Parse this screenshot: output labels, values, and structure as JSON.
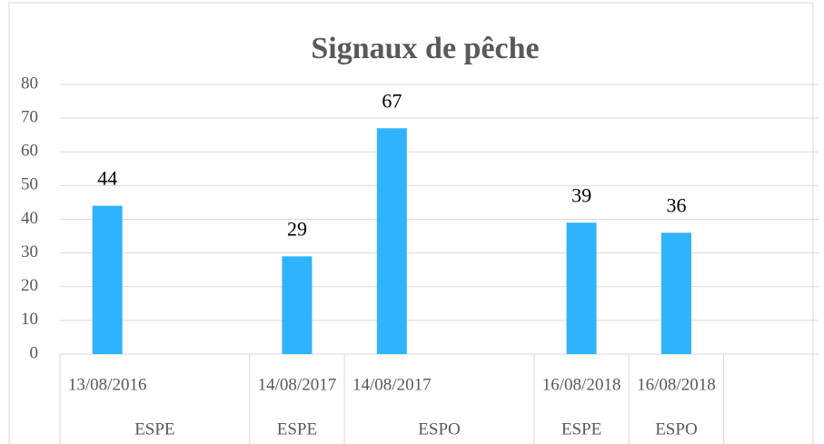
{
  "chart_data": {
    "type": "bar",
    "title": "Signaux de pêche",
    "categories": [
      "13/08/2016",
      null,
      "14/08/2017",
      "14/08/2017",
      null,
      "16/08/2018",
      "16/08/2018",
      null
    ],
    "groups": [
      {
        "label": "ESPE",
        "span": 2
      },
      {
        "label": "ESPE",
        "span": 1
      },
      {
        "label": "ESPO",
        "span": 2
      },
      {
        "label": "ESPE",
        "span": 1
      },
      {
        "label": "ESPO",
        "span": 1
      },
      {
        "label": null,
        "span": 1
      }
    ],
    "values": [
      44,
      null,
      29,
      67,
      null,
      39,
      36,
      null
    ],
    "color": "#2fb3fd",
    "ylim": [
      0,
      80
    ],
    "yticks": [
      0,
      10,
      20,
      30,
      40,
      50,
      60,
      70,
      80
    ],
    "grid": true
  }
}
